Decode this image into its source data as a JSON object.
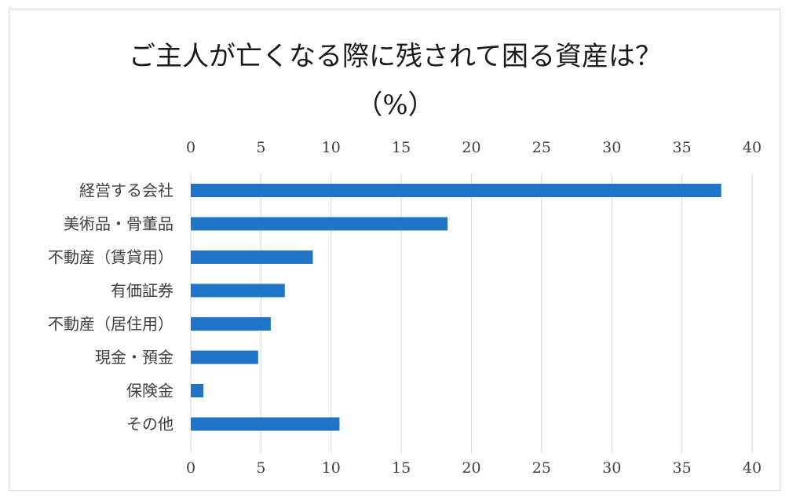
{
  "chart_data": {
    "type": "bar",
    "orientation": "horizontal",
    "title": "ご主人が亡くなる際に残されて困る資産は？",
    "subtitle": "（%）",
    "categories": [
      "経営する会社",
      "美術品・骨董品",
      "不動産（賃貸用）",
      "有価証券",
      "不動産（居住用）",
      "現金・預金",
      "保険金",
      "その他"
    ],
    "values": [
      37.8,
      18.3,
      8.7,
      6.7,
      5.7,
      4.8,
      0.9,
      10.6
    ],
    "xlim": [
      0,
      40
    ],
    "ticks": [
      0,
      5,
      10,
      15,
      20,
      25,
      30,
      35,
      40
    ],
    "tick_labels": [
      "0",
      "5",
      "10",
      "15",
      "20",
      "25",
      "30",
      "35",
      "40"
    ],
    "axis_position": "top-and-bottom",
    "grid": true,
    "legend": "none",
    "bar_color": "#1f74c7",
    "grid_color": "#d9d9d9"
  }
}
